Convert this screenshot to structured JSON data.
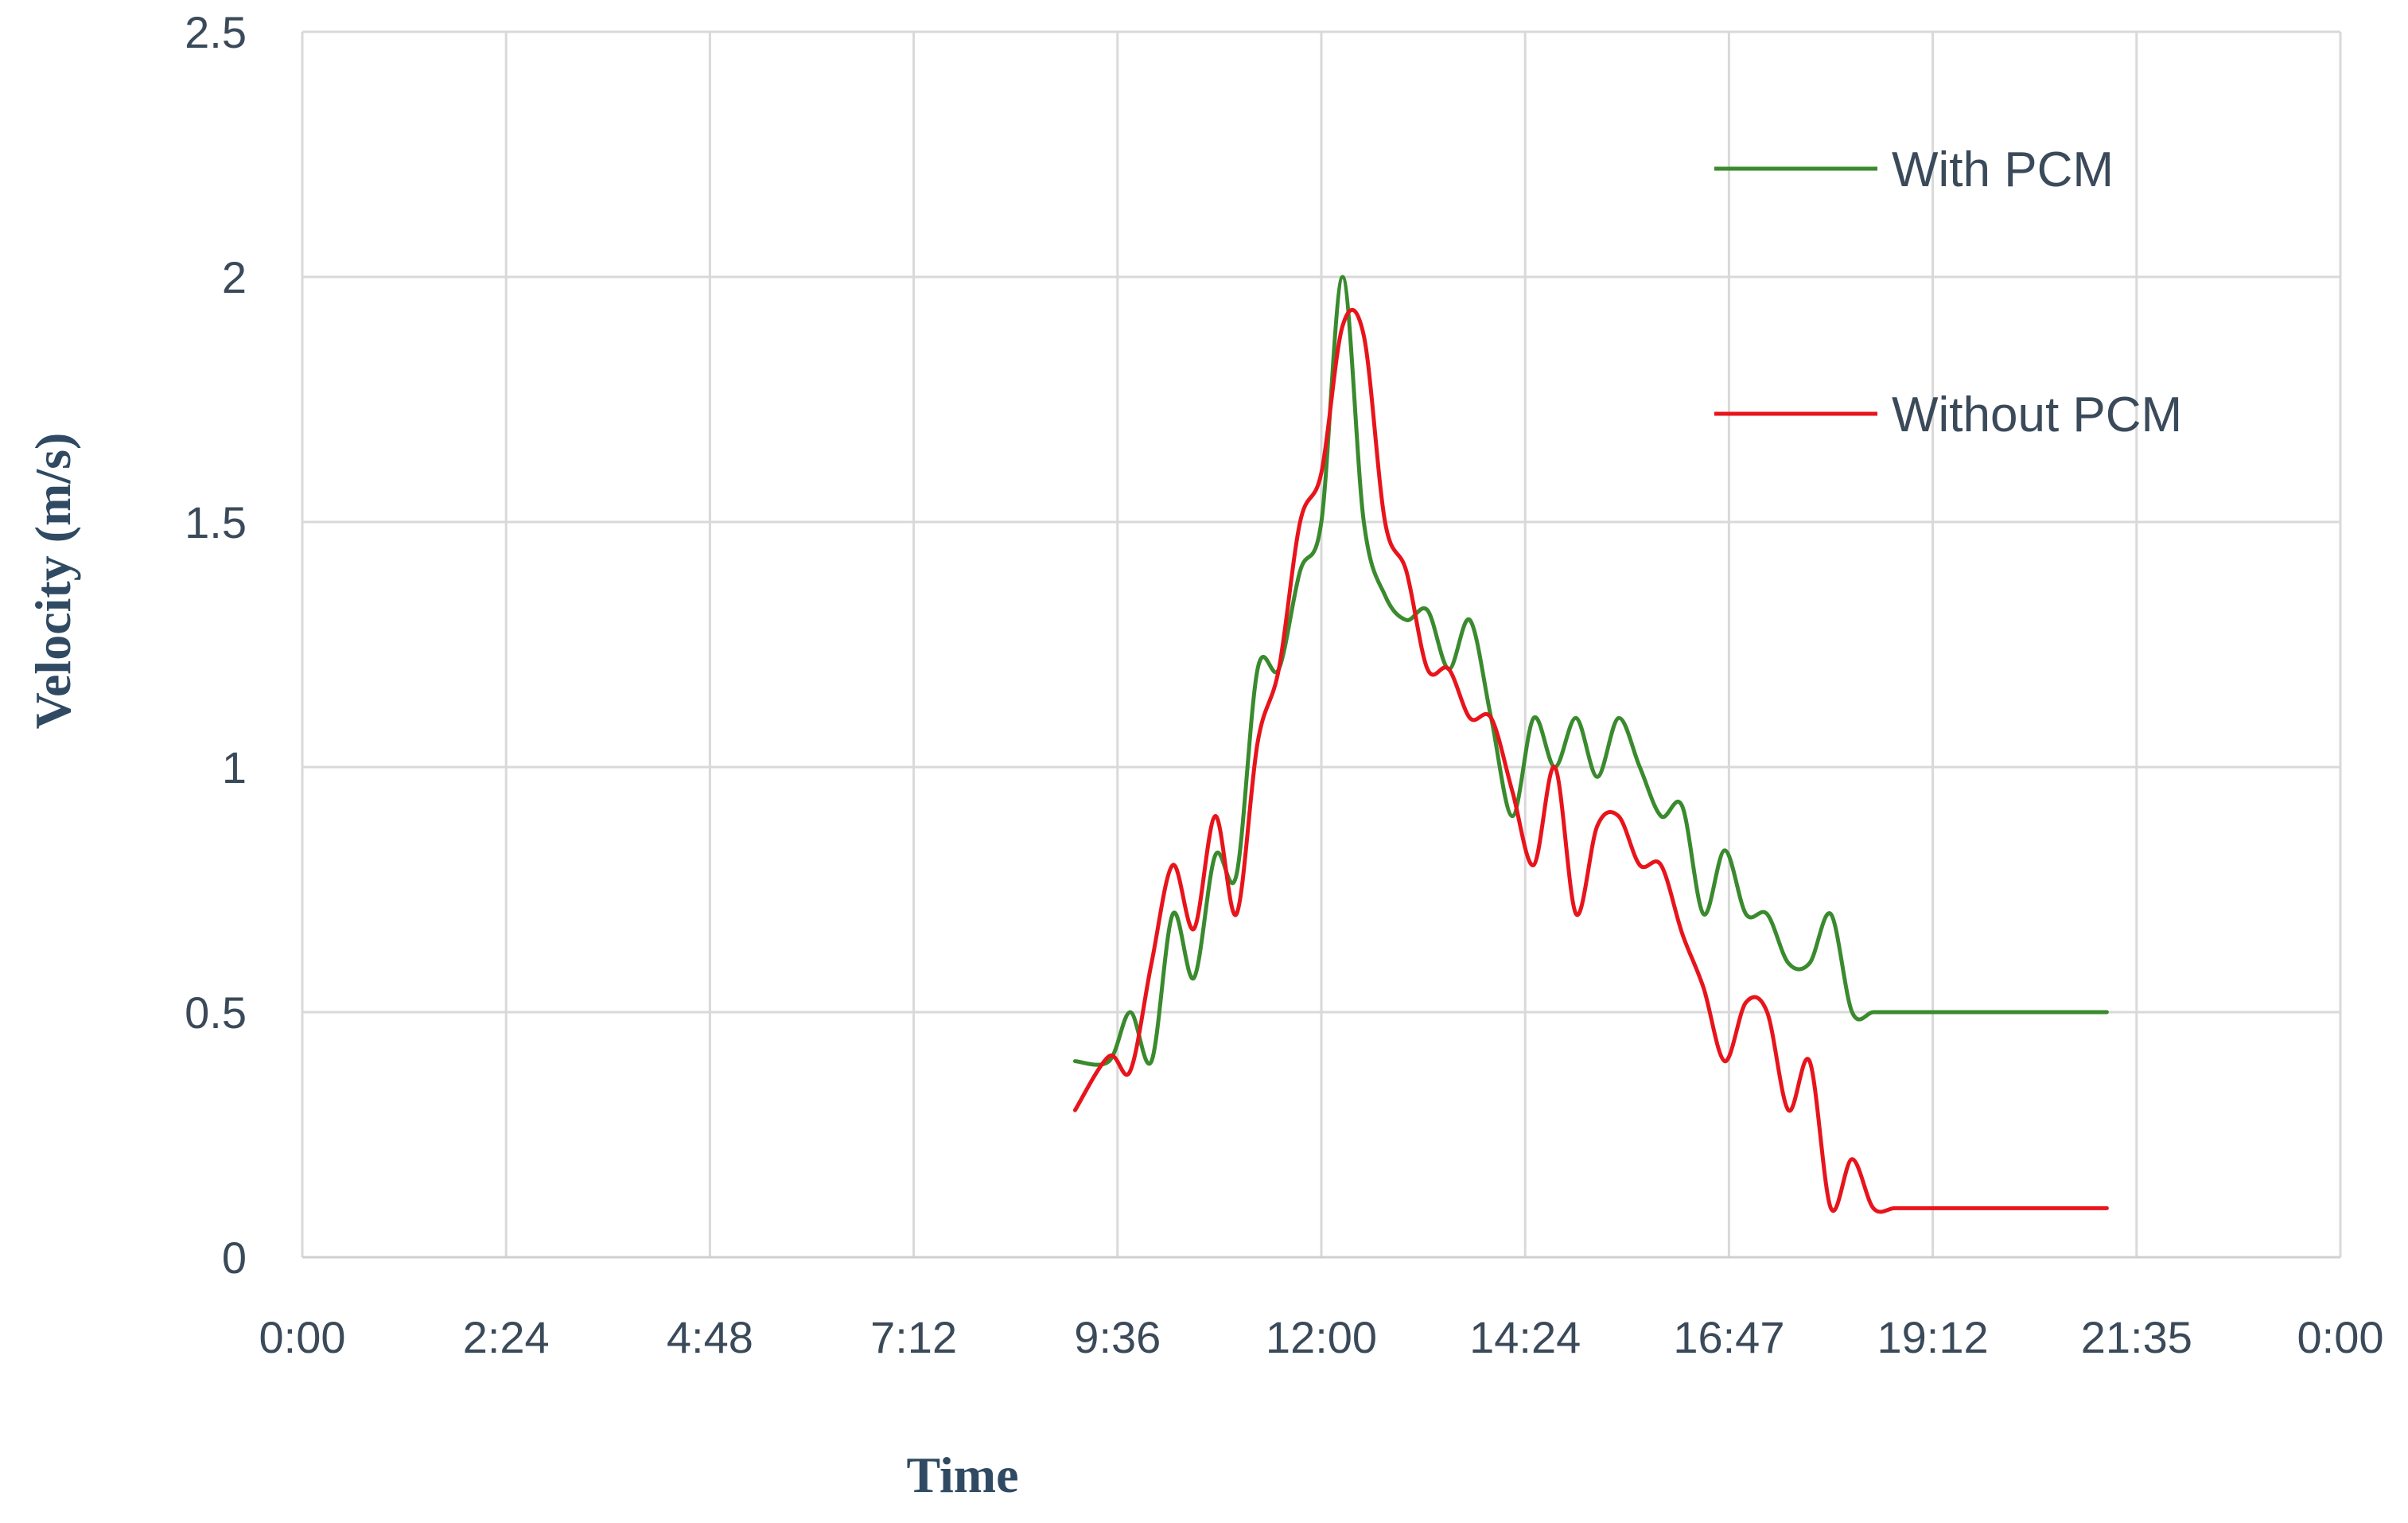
{
  "chart_data": {
    "type": "line",
    "xlabel": "Time",
    "ylabel": "Velocity (m/s)",
    "x_unit": "hours",
    "x_ticks": [
      {
        "value": 0,
        "label": "0:00"
      },
      {
        "value": 2.4,
        "label": "2:24"
      },
      {
        "value": 4.8,
        "label": "4:48"
      },
      {
        "value": 7.2,
        "label": "7:12"
      },
      {
        "value": 9.6,
        "label": "9:36"
      },
      {
        "value": 12.0,
        "label": "12:00"
      },
      {
        "value": 14.4,
        "label": "14:24"
      },
      {
        "value": 16.8,
        "label": "16:47"
      },
      {
        "value": 19.2,
        "label": "19:12"
      },
      {
        "value": 21.6,
        "label": "21:35"
      },
      {
        "value": 24.0,
        "label": "0:00"
      }
    ],
    "y_ticks": [
      {
        "value": 0,
        "label": "0"
      },
      {
        "value": 0.5,
        "label": "0.5"
      },
      {
        "value": 1,
        "label": "1"
      },
      {
        "value": 1.5,
        "label": "1.5"
      },
      {
        "value": 2,
        "label": "2"
      },
      {
        "value": 2.5,
        "label": "2.5"
      }
    ],
    "xlim": [
      0,
      24
    ],
    "ylim": [
      0,
      2.5
    ],
    "grid": true,
    "legend_position": "top-right",
    "series": [
      {
        "name": "With PCM",
        "color": "#3a8a2e",
        "x": [
          9.1,
          9.5,
          9.75,
          10.0,
          10.25,
          10.5,
          10.75,
          11.0,
          11.25,
          11.5,
          11.75,
          12.0,
          12.25,
          12.5,
          12.75,
          13.0,
          13.25,
          13.5,
          13.75,
          14.0,
          14.25,
          14.5,
          14.75,
          15.0,
          15.25,
          15.5,
          15.75,
          16.0,
          16.25,
          16.5,
          16.75,
          17.0,
          17.25,
          17.5,
          17.75,
          18.0,
          18.25,
          18.5,
          18.75,
          19.0,
          19.25,
          19.5,
          19.75,
          20.0,
          20.25,
          20.5,
          20.75,
          21.0,
          21.25
        ],
        "y": [
          0.4,
          0.4,
          0.5,
          0.4,
          0.7,
          0.57,
          0.82,
          0.78,
          1.2,
          1.2,
          1.4,
          1.5,
          2.0,
          1.5,
          1.35,
          1.3,
          1.32,
          1.2,
          1.3,
          1.1,
          0.9,
          1.1,
          1.0,
          1.1,
          0.98,
          1.1,
          1.0,
          0.9,
          0.92,
          0.7,
          0.83,
          0.7,
          0.7,
          0.6,
          0.6,
          0.7,
          0.5,
          0.5,
          0.5,
          0.5,
          0.5,
          0.5,
          0.5,
          0.5,
          0.5,
          0.5,
          0.5,
          0.5,
          0.5
        ]
      },
      {
        "name": "Without PCM",
        "color": "#e8141c",
        "x": [
          9.1,
          9.5,
          9.75,
          10.0,
          10.25,
          10.5,
          10.75,
          11.0,
          11.25,
          11.5,
          11.75,
          12.0,
          12.25,
          12.5,
          12.75,
          13.0,
          13.25,
          13.5,
          13.75,
          14.0,
          14.25,
          14.5,
          14.75,
          15.0,
          15.25,
          15.5,
          15.75,
          16.0,
          16.25,
          16.5,
          16.75,
          17.0,
          17.25,
          17.5,
          17.75,
          18.0,
          18.25,
          18.5,
          18.75,
          19.0,
          19.25,
          19.5,
          19.75,
          20.0,
          20.25,
          20.5,
          20.75,
          21.0,
          21.25
        ],
        "y": [
          0.3,
          0.41,
          0.38,
          0.6,
          0.8,
          0.67,
          0.9,
          0.7,
          1.05,
          1.2,
          1.5,
          1.6,
          1.9,
          1.88,
          1.5,
          1.4,
          1.2,
          1.2,
          1.1,
          1.1,
          0.95,
          0.8,
          1.0,
          0.7,
          0.88,
          0.9,
          0.8,
          0.8,
          0.66,
          0.55,
          0.4,
          0.52,
          0.5,
          0.3,
          0.4,
          0.1,
          0.2,
          0.1,
          0.1,
          0.1,
          0.1,
          0.1,
          0.1,
          0.1,
          0.1,
          0.1,
          0.1,
          0.1,
          0.1
        ]
      }
    ]
  }
}
